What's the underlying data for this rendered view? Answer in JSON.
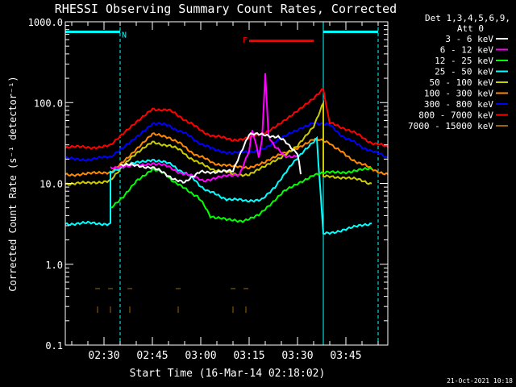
{
  "chart_data": {
    "type": "line",
    "title": "RHESSI Observing Summary Count Rates, Corrected",
    "xlabel": "Start Time (16-Mar-14 02:18:02)",
    "ylabel": "Corrected Count Rate (s⁻¹ detector⁻¹)",
    "y_scale": "log",
    "ylim": [
      0.1,
      1000
    ],
    "xlim_minutes_after_0218": [
      0,
      100
    ],
    "y_ticks": [
      "0.1",
      "1.0",
      "10.0",
      "100.0",
      "1000.0"
    ],
    "x_ticks": [
      {
        "label": "02:30",
        "t": 12
      },
      {
        "label": "02:45",
        "t": 27
      },
      {
        "label": "03:00",
        "t": 42
      },
      {
        "label": "03:15",
        "t": 57
      },
      {
        "label": "03:30",
        "t": 72
      },
      {
        "label": "03:45",
        "t": 87
      }
    ],
    "legend_header": [
      "Det 1,3,4,5,6,9,",
      "Att 0"
    ],
    "legend_position": "right",
    "grid": false,
    "series": [
      {
        "name": "3 - 6 keV",
        "color": "#ffffff",
        "points": [
          [
            17,
            17
          ],
          [
            27,
            16
          ],
          [
            31,
            13
          ],
          [
            37,
            10
          ],
          [
            42,
            14
          ],
          [
            47,
            14
          ],
          [
            52,
            14
          ],
          [
            57,
            40
          ],
          [
            62,
            40
          ],
          [
            66,
            38
          ],
          [
            70,
            28
          ],
          [
            72,
            24
          ],
          [
            73,
            13
          ]
        ]
      },
      {
        "name": "6 - 12 keV",
        "color": "#ff00ff",
        "points": [
          [
            14,
            16
          ],
          [
            20,
            16
          ],
          [
            27,
            18
          ],
          [
            32,
            16
          ],
          [
            37,
            13
          ],
          [
            43,
            11
          ],
          [
            49,
            12
          ],
          [
            54,
            13
          ],
          [
            57,
            25
          ],
          [
            58,
            45
          ],
          [
            60,
            22
          ],
          [
            61,
            35
          ],
          [
            62,
            230
          ],
          [
            63,
            40
          ],
          [
            65,
            28
          ],
          [
            68,
            22
          ],
          [
            72,
            22
          ]
        ]
      },
      {
        "name": "12 - 25 keV",
        "color": "#00ff00",
        "points": [
          [
            14,
            5
          ],
          [
            18,
            7
          ],
          [
            22,
            11
          ],
          [
            27,
            15
          ],
          [
            31,
            13
          ],
          [
            36,
            9
          ],
          [
            41,
            7
          ],
          [
            45,
            4
          ],
          [
            50,
            3.5
          ],
          [
            55,
            3.5
          ],
          [
            60,
            4
          ],
          [
            64,
            5.5
          ],
          [
            68,
            8
          ],
          [
            72,
            10
          ],
          [
            77,
            13
          ],
          [
            82,
            13.5
          ],
          [
            87,
            14
          ],
          [
            95,
            15
          ]
        ]
      },
      {
        "name": "25 - 50 keV",
        "color": "#00ffff",
        "points": [
          [
            0,
            3.2
          ],
          [
            7,
            3.2
          ],
          [
            14,
            3.2
          ],
          [
            14,
            14
          ],
          [
            20,
            17
          ],
          [
            27,
            20
          ],
          [
            33,
            17
          ],
          [
            39,
            12
          ],
          [
            44,
            8
          ],
          [
            50,
            6.5
          ],
          [
            56,
            6
          ],
          [
            61,
            6.5
          ],
          [
            65,
            9
          ],
          [
            70,
            17
          ],
          [
            74,
            25
          ],
          [
            78,
            35
          ],
          [
            80,
            2.4
          ],
          [
            87,
            2.7
          ],
          [
            95,
            3.2
          ]
        ]
      },
      {
        "name": "50 - 100 keV",
        "color": "#cccc00",
        "points": [
          [
            0,
            10
          ],
          [
            7,
            10
          ],
          [
            14,
            11
          ],
          [
            20,
            20
          ],
          [
            27,
            32
          ],
          [
            32,
            30
          ],
          [
            36,
            25
          ],
          [
            41,
            18
          ],
          [
            46,
            15
          ],
          [
            52,
            13
          ],
          [
            57,
            13
          ],
          [
            62,
            16
          ],
          [
            67,
            21
          ],
          [
            72,
            30
          ],
          [
            77,
            52
          ],
          [
            80,
            100
          ],
          [
            80,
            12
          ],
          [
            87,
            12
          ],
          [
            95,
            10
          ]
        ]
      },
      {
        "name": "100 - 300 keV",
        "color": "#ff8800",
        "points": [
          [
            0,
            13
          ],
          [
            7,
            13
          ],
          [
            14,
            14
          ],
          [
            20,
            22
          ],
          [
            27,
            40
          ],
          [
            32,
            38
          ],
          [
            36,
            30
          ],
          [
            41,
            22
          ],
          [
            46,
            18
          ],
          [
            52,
            16
          ],
          [
            57,
            16
          ],
          [
            62,
            18
          ],
          [
            67,
            23
          ],
          [
            72,
            28
          ],
          [
            77,
            35
          ],
          [
            82,
            32
          ],
          [
            87,
            22
          ],
          [
            95,
            15
          ],
          [
            100,
            13
          ]
        ]
      },
      {
        "name": "300 - 800 keV",
        "color": "#0000ff",
        "points": [
          [
            0,
            20
          ],
          [
            7,
            20
          ],
          [
            14,
            21
          ],
          [
            20,
            33
          ],
          [
            27,
            55
          ],
          [
            32,
            52
          ],
          [
            36,
            44
          ],
          [
            41,
            33
          ],
          [
            46,
            26
          ],
          [
            52,
            24
          ],
          [
            57,
            24
          ],
          [
            62,
            28
          ],
          [
            67,
            36
          ],
          [
            72,
            45
          ],
          [
            77,
            58
          ],
          [
            82,
            52
          ],
          [
            87,
            36
          ],
          [
            95,
            25
          ],
          [
            100,
            21
          ]
        ]
      },
      {
        "name": "800 - 7000 keV",
        "color": "#ff0000",
        "points": [
          [
            0,
            28
          ],
          [
            7,
            28
          ],
          [
            14,
            29
          ],
          [
            20,
            48
          ],
          [
            27,
            85
          ],
          [
            32,
            80
          ],
          [
            36,
            66
          ],
          [
            41,
            48
          ],
          [
            46,
            38
          ],
          [
            52,
            35
          ],
          [
            57,
            36
          ],
          [
            62,
            42
          ],
          [
            67,
            58
          ],
          [
            72,
            80
          ],
          [
            77,
            110
          ],
          [
            80,
            145
          ],
          [
            82,
            55
          ],
          [
            87,
            48
          ],
          [
            95,
            32
          ],
          [
            100,
            28
          ]
        ]
      },
      {
        "name": "7000 - 15000 keV",
        "color": "#996600",
        "points": [
          [
            10,
            0.5
          ],
          [
            14,
            0.5
          ],
          [
            20,
            0.5
          ],
          [
            35,
            0.5
          ],
          [
            52,
            0.5
          ],
          [
            56,
            0.5
          ]
        ]
      }
    ],
    "annotations": [
      {
        "text": "N",
        "color": "#00ffff",
        "t": 17.5,
        "y": 700
      },
      {
        "text": "F",
        "color": "#ff0000",
        "t": 55,
        "y": 600
      }
    ],
    "flag_bars": [
      {
        "label": "N",
        "color": "#00ffff",
        "y": 750,
        "t_start": 0,
        "t_end": 17
      },
      {
        "label": "N",
        "color": "#00ffff",
        "y": 750,
        "t_start": 80,
        "t_end": 97
      },
      {
        "label": "F",
        "color": "#ff0000",
        "y": 580,
        "t_start": 57,
        "t_end": 77
      }
    ],
    "vertical_markers": [
      {
        "color": "#00ffff",
        "style": "solid",
        "t": 0
      },
      {
        "color": "#00ffff",
        "style": "dashed",
        "t": 17
      },
      {
        "color": "#00ffff",
        "style": "solid",
        "t": 80
      },
      {
        "color": "#00ffff",
        "style": "dashed",
        "t": 97
      }
    ],
    "footer_date": "21-Oct-2021 10:18"
  }
}
